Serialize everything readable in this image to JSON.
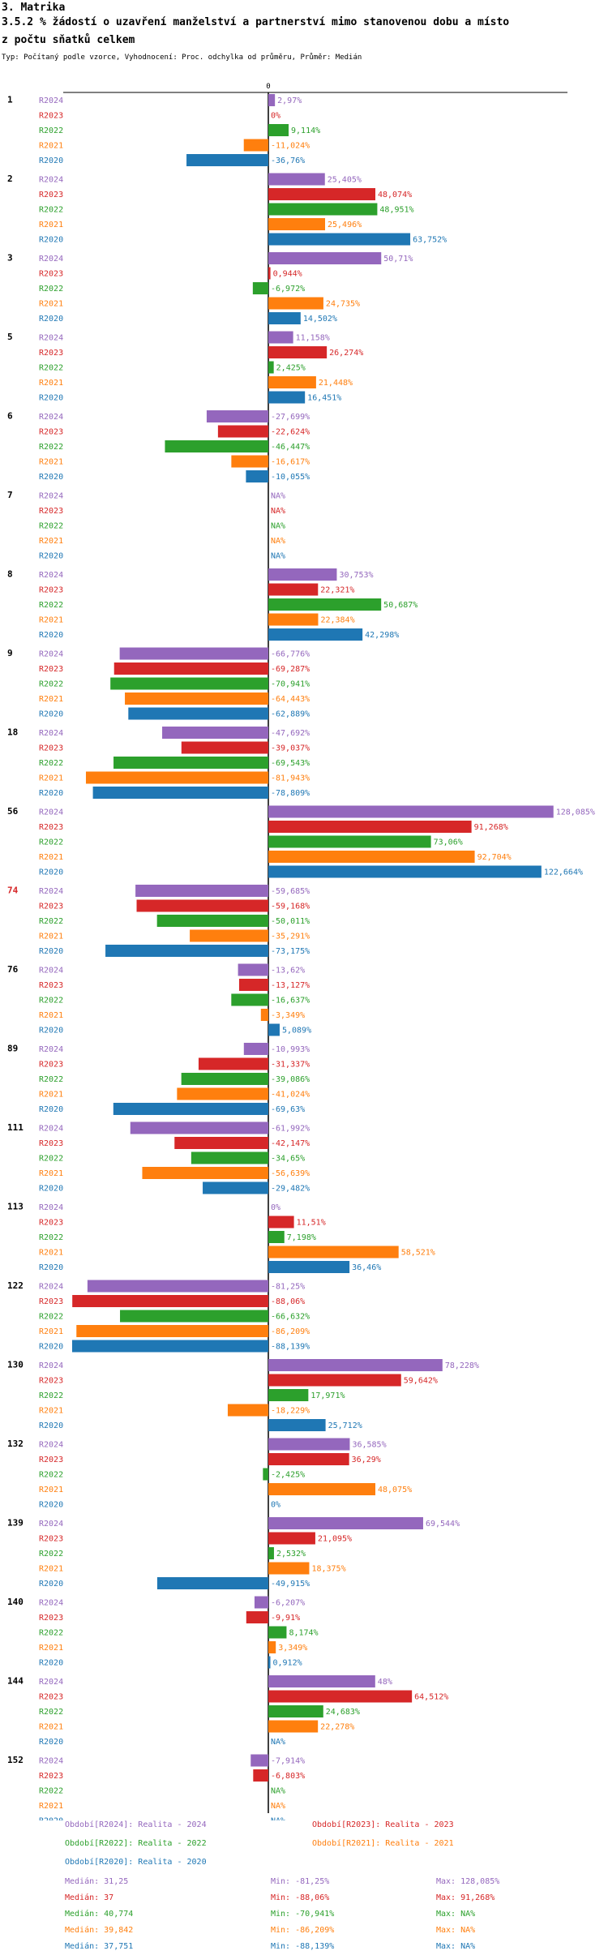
{
  "header": {
    "section": "3. Matrika",
    "title_line1": "3.5.2 % žádostí o uzavření manželství a partnerství mimo stanovenou dobu a místo",
    "title_line2": "z počtu sňatků celkem",
    "type_line": "Typ: Počítaný podle vzorce, Vyhodnocení: Proc. odchylka od průměru, Průměr: Medián"
  },
  "colors": {
    "R2024": "#9467bd",
    "R2023": "#d62728",
    "R2022": "#2ca02c",
    "R2021": "#ff7f0e",
    "R2020": "#1f77b4",
    "highlight": "#d62728"
  },
  "chart_data": {
    "type": "bar",
    "orientation": "horizontal",
    "zero_label": "0",
    "series_names": [
      "R2024",
      "R2023",
      "R2022",
      "R2021",
      "R2020"
    ],
    "groups": [
      {
        "id": "1",
        "highlight": false,
        "values": [
          2.97,
          0,
          9.114,
          -11.024,
          -36.76
        ],
        "labels": [
          "2,97%",
          "0%",
          "9,114%",
          "-11,024%",
          "-36,76%"
        ]
      },
      {
        "id": "2",
        "highlight": false,
        "values": [
          25.405,
          48.074,
          48.951,
          25.496,
          63.752
        ],
        "labels": [
          "25,405%",
          "48,074%",
          "48,951%",
          "25,496%",
          "63,752%"
        ]
      },
      {
        "id": "3",
        "highlight": false,
        "values": [
          50.71,
          0.944,
          -6.972,
          24.735,
          14.502
        ],
        "labels": [
          "50,71%",
          "0,944%",
          "-6,972%",
          "24,735%",
          "14,502%"
        ]
      },
      {
        "id": "5",
        "highlight": false,
        "values": [
          11.158,
          26.274,
          2.425,
          21.448,
          16.451
        ],
        "labels": [
          "11,158%",
          "26,274%",
          "2,425%",
          "21,448%",
          "16,451%"
        ]
      },
      {
        "id": "6",
        "highlight": false,
        "values": [
          -27.699,
          -22.624,
          -46.447,
          -16.617,
          -10.055
        ],
        "labels": [
          "-27,699%",
          "-22,624%",
          "-46,447%",
          "-16,617%",
          "-10,055%"
        ]
      },
      {
        "id": "7",
        "highlight": false,
        "values": [
          null,
          null,
          null,
          null,
          null
        ],
        "labels": [
          "NA%",
          "NA%",
          "NA%",
          "NA%",
          "NA%"
        ]
      },
      {
        "id": "8",
        "highlight": false,
        "values": [
          30.753,
          22.321,
          50.687,
          22.384,
          42.298
        ],
        "labels": [
          "30,753%",
          "22,321%",
          "50,687%",
          "22,384%",
          "42,298%"
        ]
      },
      {
        "id": "9",
        "highlight": false,
        "values": [
          -66.776,
          -69.287,
          -70.941,
          -64.443,
          -62.889
        ],
        "labels": [
          "-66,776%",
          "-69,287%",
          "-70,941%",
          "-64,443%",
          "-62,889%"
        ]
      },
      {
        "id": "18",
        "highlight": false,
        "values": [
          -47.692,
          -39.037,
          -69.543,
          -81.943,
          -78.809
        ],
        "labels": [
          "-47,692%",
          "-39,037%",
          "-69,543%",
          "-81,943%",
          "-78,809%"
        ]
      },
      {
        "id": "56",
        "highlight": false,
        "values": [
          128.085,
          91.268,
          73.06,
          92.704,
          122.664
        ],
        "labels": [
          "128,085%",
          "91,268%",
          "73,06%",
          "92,704%",
          "122,664%"
        ]
      },
      {
        "id": "74",
        "highlight": true,
        "values": [
          -59.685,
          -59.168,
          -50.011,
          -35.291,
          -73.175
        ],
        "labels": [
          "-59,685%",
          "-59,168%",
          "-50,011%",
          "-35,291%",
          "-73,175%"
        ]
      },
      {
        "id": "76",
        "highlight": false,
        "values": [
          -13.62,
          -13.127,
          -16.637,
          -3.349,
          5.089
        ],
        "labels": [
          "-13,62%",
          "-13,127%",
          "-16,637%",
          "-3,349%",
          "5,089%"
        ]
      },
      {
        "id": "89",
        "highlight": false,
        "values": [
          -10.993,
          -31.337,
          -39.086,
          -41.024,
          -69.63
        ],
        "labels": [
          "-10,993%",
          "-31,337%",
          "-39,086%",
          "-41,024%",
          "-69,63%"
        ]
      },
      {
        "id": "111",
        "highlight": false,
        "values": [
          -61.992,
          -42.147,
          -34.65,
          -56.639,
          -29.482
        ],
        "labels": [
          "-61,992%",
          "-42,147%",
          "-34,65%",
          "-56,639%",
          "-29,482%"
        ]
      },
      {
        "id": "113",
        "highlight": false,
        "values": [
          0,
          11.51,
          7.198,
          58.521,
          36.46
        ],
        "labels": [
          "0%",
          "11,51%",
          "7,198%",
          "58,521%",
          "36,46%"
        ]
      },
      {
        "id": "122",
        "highlight": false,
        "values": [
          -81.25,
          -88.06,
          -66.632,
          -86.209,
          -88.139
        ],
        "labels": [
          "-81,25%",
          "-88,06%",
          "-66,632%",
          "-86,209%",
          "-88,139%"
        ]
      },
      {
        "id": "130",
        "highlight": false,
        "values": [
          78.228,
          59.642,
          17.971,
          -18.229,
          25.712
        ],
        "labels": [
          "78,228%",
          "59,642%",
          "17,971%",
          "-18,229%",
          "25,712%"
        ]
      },
      {
        "id": "132",
        "highlight": false,
        "values": [
          36.585,
          36.29,
          -2.425,
          48.075,
          0
        ],
        "labels": [
          "36,585%",
          "36,29%",
          "-2,425%",
          "48,075%",
          "0%"
        ]
      },
      {
        "id": "139",
        "highlight": false,
        "values": [
          69.544,
          21.095,
          2.532,
          18.375,
          -49.915
        ],
        "labels": [
          "69,544%",
          "21,095%",
          "2,532%",
          "18,375%",
          "-49,915%"
        ]
      },
      {
        "id": "140",
        "highlight": false,
        "values": [
          -6.207,
          -9.91,
          8.174,
          3.349,
          0.912
        ],
        "labels": [
          "-6,207%",
          "-9,91%",
          "8,174%",
          "3,349%",
          "0,912%"
        ]
      },
      {
        "id": "144",
        "highlight": false,
        "values": [
          48,
          64.512,
          24.683,
          22.278,
          null
        ],
        "labels": [
          "48%",
          "64,512%",
          "24,683%",
          "22,278%",
          "NA%"
        ]
      },
      {
        "id": "152",
        "highlight": false,
        "values": [
          -7.914,
          -6.803,
          null,
          null,
          null
        ],
        "labels": [
          "-7,914%",
          "-6,803%",
          "NA%",
          "NA%",
          "NA%"
        ]
      }
    ],
    "xlim": [
      -88.139,
      128.085
    ]
  },
  "legend": {
    "entries": [
      {
        "series": "R2024",
        "text": "Období[R2024]: Realita - 2024"
      },
      {
        "series": "R2023",
        "text": "Období[R2023]: Realita - 2023"
      },
      {
        "series": "R2022",
        "text": "Období[R2022]: Realita - 2022"
      },
      {
        "series": "R2021",
        "text": "Období[R2021]: Realita - 2021"
      },
      {
        "series": "R2020",
        "text": "Období[R2020]: Realita - 2020"
      }
    ],
    "stats": [
      {
        "series": "R2024",
        "median": "Medián: 31,25",
        "min": "Min: -81,25%",
        "max": "Max: 128,085%"
      },
      {
        "series": "R2023",
        "median": "Medián: 37",
        "min": "Min: -88,06%",
        "max": "Max: 91,268%"
      },
      {
        "series": "R2022",
        "median": "Medián: 40,774",
        "min": "Min: -70,941%",
        "max": "Max: NA%"
      },
      {
        "series": "R2021",
        "median": "Medián: 39,842",
        "min": "Min: -86,209%",
        "max": "Max: NA%"
      },
      {
        "series": "R2020",
        "median": "Medián: 37,751",
        "min": "Min: -88,139%",
        "max": "Max: NA%"
      }
    ]
  }
}
